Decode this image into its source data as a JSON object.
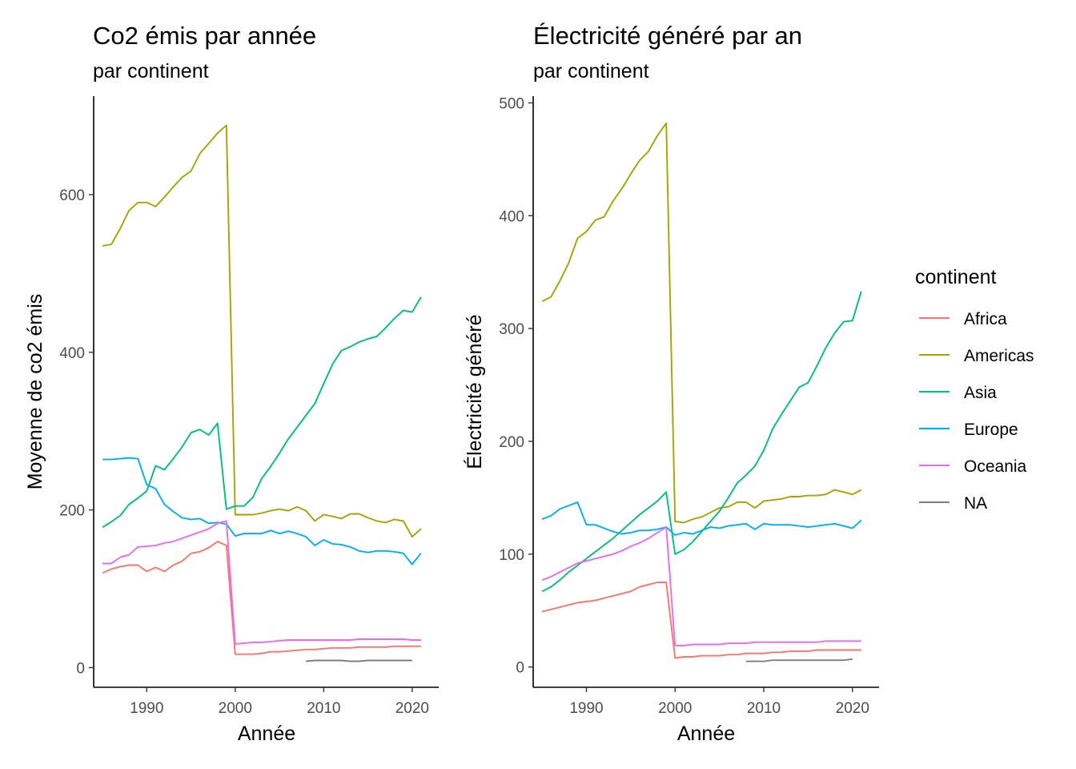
{
  "chart_data": [
    {
      "type": "line",
      "title": "Co2 émis par année",
      "subtitle": "par continent",
      "xlabel": "Année",
      "ylabel": "Moyenne de co2 émis",
      "xlim": [
        1984,
        2023
      ],
      "ylim": [
        -25,
        725
      ],
      "xticks": [
        1990,
        2000,
        2010,
        2020
      ],
      "yticks": [
        0,
        200,
        400,
        600
      ],
      "series": [
        {
          "name": "Africa",
          "color": "#F8766D",
          "x": [
            1985,
            1986,
            1987,
            1988,
            1989,
            1990,
            1991,
            1992,
            1993,
            1994,
            1995,
            1996,
            1997,
            1998,
            1999,
            2000,
            2001,
            2002,
            2003,
            2004,
            2005,
            2006,
            2007,
            2008,
            2009,
            2010,
            2011,
            2012,
            2013,
            2014,
            2015,
            2016,
            2017,
            2018,
            2019,
            2020,
            2021
          ],
          "y": [
            120,
            125,
            128,
            130,
            130,
            122,
            127,
            122,
            130,
            135,
            145,
            147,
            152,
            160,
            155,
            17,
            17,
            17,
            18,
            20,
            20,
            21,
            22,
            23,
            23,
            24,
            25,
            25,
            25,
            26,
            26,
            26,
            26,
            27,
            27,
            27,
            27
          ]
        },
        {
          "name": "Americas",
          "color": "#A3A500",
          "x": [
            1985,
            1986,
            1987,
            1988,
            1989,
            1990,
            1991,
            1992,
            1993,
            1994,
            1995,
            1996,
            1997,
            1998,
            1999,
            2000,
            2001,
            2002,
            2003,
            2004,
            2005,
            2006,
            2007,
            2008,
            2009,
            2010,
            2011,
            2012,
            2013,
            2014,
            2015,
            2016,
            2017,
            2018,
            2019,
            2020,
            2021
          ],
          "y": [
            535,
            537,
            557,
            580,
            590,
            590,
            585,
            597,
            610,
            622,
            630,
            652,
            665,
            678,
            688,
            194,
            194,
            194,
            196,
            199,
            201,
            199,
            204,
            199,
            186,
            194,
            192,
            189,
            195,
            195,
            190,
            186,
            184,
            188,
            186,
            166,
            176
          ]
        },
        {
          "name": "Asia",
          "color": "#00BF7D",
          "x": [
            1985,
            1986,
            1987,
            1988,
            1989,
            1990,
            1991,
            1992,
            1993,
            1994,
            1995,
            1996,
            1997,
            1998,
            1999,
            2000,
            2001,
            2002,
            2003,
            2004,
            2005,
            2006,
            2007,
            2008,
            2009,
            2010,
            2011,
            2012,
            2013,
            2014,
            2015,
            2016,
            2017,
            2018,
            2019,
            2020,
            2021
          ],
          "y": [
            178,
            185,
            193,
            207,
            215,
            224,
            256,
            251,
            265,
            280,
            298,
            302,
            295,
            310,
            201,
            205,
            205,
            216,
            240,
            255,
            272,
            290,
            305,
            320,
            335,
            360,
            385,
            402,
            407,
            413,
            417,
            420,
            431,
            443,
            453,
            451,
            470
          ]
        },
        {
          "name": "Europe",
          "color": "#00B0F6",
          "x": [
            1985,
            1986,
            1987,
            1988,
            1989,
            1990,
            1991,
            1992,
            1993,
            1994,
            1995,
            1996,
            1997,
            1998,
            1999,
            2000,
            2001,
            2002,
            2003,
            2004,
            2005,
            2006,
            2007,
            2008,
            2009,
            2010,
            2011,
            2012,
            2013,
            2014,
            2015,
            2016,
            2017,
            2018,
            2019,
            2020,
            2021
          ],
          "y": [
            264,
            264,
            265,
            266,
            265,
            232,
            227,
            207,
            198,
            190,
            188,
            189,
            183,
            184,
            182,
            167,
            170,
            170,
            170,
            174,
            170,
            173,
            170,
            166,
            155,
            162,
            157,
            156,
            153,
            148,
            146,
            148,
            148,
            147,
            145,
            131,
            145
          ]
        },
        {
          "name": "Oceania",
          "color": "#E76BF3",
          "x": [
            1985,
            1986,
            1987,
            1988,
            1989,
            1990,
            1991,
            1992,
            1993,
            1994,
            1995,
            1996,
            1997,
            1998,
            1999,
            2000,
            2001,
            2002,
            2003,
            2004,
            2005,
            2006,
            2007,
            2008,
            2009,
            2010,
            2011,
            2012,
            2013,
            2014,
            2015,
            2016,
            2017,
            2018,
            2019,
            2020,
            2021
          ],
          "y": [
            132,
            132,
            140,
            143,
            153,
            154,
            155,
            158,
            160,
            164,
            168,
            172,
            176,
            183,
            186,
            30,
            31,
            32,
            32,
            33,
            34,
            35,
            35,
            35,
            35,
            35,
            35,
            35,
            35,
            36,
            36,
            36,
            36,
            36,
            36,
            35,
            35
          ]
        },
        {
          "name": "NA",
          "color": "#7F7F7F",
          "x": [
            2008,
            2009,
            2010,
            2011,
            2012,
            2013,
            2014,
            2015,
            2016,
            2017,
            2018,
            2019,
            2020
          ],
          "y": [
            8,
            9,
            9,
            9,
            9,
            8,
            8,
            9,
            9,
            9,
            9,
            9,
            9
          ]
        }
      ]
    },
    {
      "type": "line",
      "title": "Électricité généré par an",
      "subtitle": "par continent",
      "xlabel": "Année",
      "ylabel": "Électricité généré",
      "xlim": [
        1984,
        2023
      ],
      "ylim": [
        -18,
        506
      ],
      "xticks": [
        1990,
        2000,
        2010,
        2020
      ],
      "yticks": [
        0,
        100,
        200,
        300,
        400,
        500
      ],
      "series": [
        {
          "name": "Africa",
          "color": "#F8766D",
          "x": [
            1985,
            1986,
            1987,
            1988,
            1989,
            1990,
            1991,
            1992,
            1993,
            1994,
            1995,
            1996,
            1997,
            1998,
            1999,
            2000,
            2001,
            2002,
            2003,
            2004,
            2005,
            2006,
            2007,
            2008,
            2009,
            2010,
            2011,
            2012,
            2013,
            2014,
            2015,
            2016,
            2017,
            2018,
            2019,
            2020,
            2021
          ],
          "y": [
            49,
            51,
            53,
            55,
            57,
            58,
            59,
            61,
            63,
            65,
            67,
            71,
            73,
            75,
            75,
            8,
            9,
            9,
            10,
            10,
            10,
            11,
            11,
            12,
            12,
            12,
            13,
            13,
            14,
            14,
            14,
            15,
            15,
            15,
            15,
            15,
            15
          ]
        },
        {
          "name": "Americas",
          "color": "#A3A500",
          "x": [
            1985,
            1986,
            1987,
            1988,
            1989,
            1990,
            1991,
            1992,
            1993,
            1994,
            1995,
            1996,
            1997,
            1998,
            1999,
            2000,
            2001,
            2002,
            2003,
            2004,
            2005,
            2006,
            2007,
            2008,
            2009,
            2010,
            2011,
            2012,
            2013,
            2014,
            2015,
            2016,
            2017,
            2018,
            2019,
            2020,
            2021
          ],
          "y": [
            324,
            328,
            342,
            358,
            380,
            386,
            396,
            399,
            413,
            424,
            437,
            449,
            457,
            471,
            482,
            129,
            128,
            131,
            133,
            137,
            141,
            142,
            146,
            146,
            141,
            147,
            148,
            149,
            151,
            151,
            152,
            152,
            153,
            157,
            155,
            153,
            157
          ]
        },
        {
          "name": "Asia",
          "color": "#00BF7D",
          "x": [
            1985,
            1986,
            1987,
            1988,
            1989,
            1990,
            1991,
            1992,
            1993,
            1994,
            1995,
            1996,
            1997,
            1998,
            1999,
            2000,
            2001,
            2002,
            2003,
            2004,
            2005,
            2006,
            2007,
            2008,
            2009,
            2010,
            2011,
            2012,
            2013,
            2014,
            2015,
            2016,
            2017,
            2018,
            2019,
            2020,
            2021
          ],
          "y": [
            67,
            71,
            77,
            84,
            90,
            96,
            102,
            108,
            114,
            121,
            128,
            135,
            141,
            147,
            155,
            100,
            104,
            111,
            120,
            129,
            138,
            150,
            163,
            170,
            178,
            192,
            211,
            224,
            236,
            248,
            252,
            267,
            283,
            296,
            306,
            307,
            333
          ]
        },
        {
          "name": "Europe",
          "color": "#00B0F6",
          "x": [
            1985,
            1986,
            1987,
            1988,
            1989,
            1990,
            1991,
            1992,
            1993,
            1994,
            1995,
            1996,
            1997,
            1998,
            1999,
            2000,
            2001,
            2002,
            2003,
            2004,
            2005,
            2006,
            2007,
            2008,
            2009,
            2010,
            2011,
            2012,
            2013,
            2014,
            2015,
            2016,
            2017,
            2018,
            2019,
            2020,
            2021
          ],
          "y": [
            131,
            134,
            140,
            143,
            146,
            126,
            126,
            123,
            120,
            118,
            119,
            121,
            121,
            122,
            124,
            117,
            119,
            118,
            121,
            124,
            123,
            125,
            126,
            127,
            122,
            127,
            126,
            126,
            126,
            125,
            124,
            125,
            126,
            127,
            125,
            123,
            130
          ]
        },
        {
          "name": "Oceania",
          "color": "#E76BF3",
          "x": [
            1985,
            1986,
            1987,
            1988,
            1989,
            1990,
            1991,
            1992,
            1993,
            1994,
            1995,
            1996,
            1997,
            1998,
            1999,
            2000,
            2001,
            2002,
            2003,
            2004,
            2005,
            2006,
            2007,
            2008,
            2009,
            2010,
            2011,
            2012,
            2013,
            2014,
            2015,
            2016,
            2017,
            2018,
            2019,
            2020,
            2021
          ],
          "y": [
            77,
            80,
            84,
            88,
            92,
            94,
            96,
            98,
            100,
            103,
            107,
            110,
            114,
            119,
            124,
            19,
            19,
            20,
            20,
            20,
            20,
            21,
            21,
            21,
            22,
            22,
            22,
            22,
            22,
            22,
            22,
            22,
            23,
            23,
            23,
            23,
            23
          ]
        },
        {
          "name": "NA",
          "color": "#7F7F7F",
          "x": [
            2008,
            2009,
            2010,
            2011,
            2012,
            2013,
            2014,
            2015,
            2016,
            2017,
            2018,
            2019,
            2020
          ],
          "y": [
            5,
            5,
            5,
            6,
            6,
            6,
            6,
            6,
            6,
            6,
            6,
            6,
            7
          ]
        }
      ]
    }
  ],
  "legend": {
    "title": "continent",
    "placement": "right",
    "items": [
      {
        "label": "Africa",
        "color": "#F8766D"
      },
      {
        "label": "Americas",
        "color": "#A3A500"
      },
      {
        "label": "Asia",
        "color": "#00BF7D"
      },
      {
        "label": "Europe",
        "color": "#00B0F6"
      },
      {
        "label": "Oceania",
        "color": "#E76BF3"
      },
      {
        "label": "NA",
        "color": "#7F7F7F"
      }
    ]
  }
}
